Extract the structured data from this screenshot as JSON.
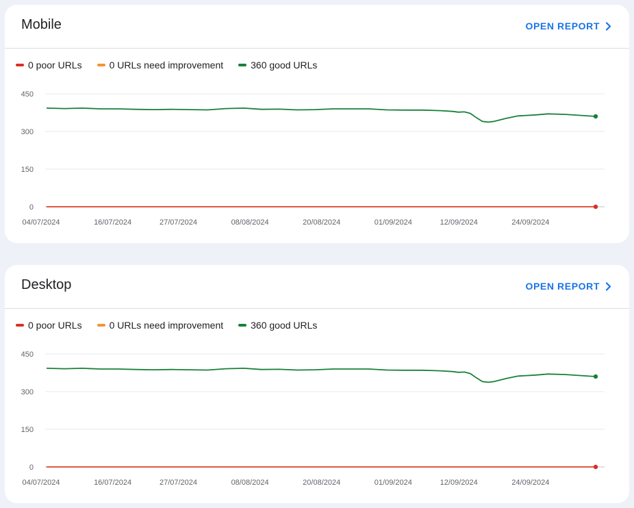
{
  "colors": {
    "poor": "#d93025",
    "needs_improvement": "#f29337",
    "good": "#188038",
    "link": "#1a73e8"
  },
  "cards": [
    {
      "title": "Mobile",
      "open_report": "OPEN REPORT",
      "icon": "chevron-right-icon",
      "legend": [
        {
          "label": "0 poor URLs",
          "color_key": "poor"
        },
        {
          "label": "0 URLs need improvement",
          "color_key": "needs_improvement"
        },
        {
          "label": "360 good URLs",
          "color_key": "good"
        }
      ]
    },
    {
      "title": "Desktop",
      "open_report": "OPEN REPORT",
      "icon": "chevron-right-icon",
      "legend": [
        {
          "label": "0 poor URLs",
          "color_key": "poor"
        },
        {
          "label": "0 URLs need improvement",
          "color_key": "needs_improvement"
        },
        {
          "label": "360 good URLs",
          "color_key": "good"
        }
      ]
    }
  ],
  "chart_data": [
    {
      "type": "line",
      "title": "Mobile",
      "x_type": "date",
      "x_ticks": [
        "04/07/2024",
        "16/07/2024",
        "27/07/2024",
        "08/08/2024",
        "20/08/2024",
        "01/09/2024",
        "12/09/2024",
        "24/09/2024"
      ],
      "y_ticks": [
        0,
        150,
        300,
        450
      ],
      "ylim": [
        0,
        450
      ],
      "grid": true,
      "series": [
        {
          "name": "good URLs",
          "color_key": "good",
          "points": [
            [
              "04/07/2024",
              393
            ],
            [
              "07/07/2024",
              391
            ],
            [
              "10/07/2024",
              393
            ],
            [
              "13/07/2024",
              390
            ],
            [
              "16/07/2024",
              390
            ],
            [
              "19/07/2024",
              388
            ],
            [
              "22/07/2024",
              387
            ],
            [
              "25/07/2024",
              388
            ],
            [
              "28/07/2024",
              387
            ],
            [
              "31/07/2024",
              386
            ],
            [
              "03/08/2024",
              391
            ],
            [
              "06/08/2024",
              393
            ],
            [
              "09/08/2024",
              388
            ],
            [
              "12/08/2024",
              389
            ],
            [
              "15/08/2024",
              386
            ],
            [
              "18/08/2024",
              387
            ],
            [
              "21/08/2024",
              390
            ],
            [
              "24/08/2024",
              390
            ],
            [
              "27/08/2024",
              390
            ],
            [
              "30/08/2024",
              386
            ],
            [
              "02/09/2024",
              385
            ],
            [
              "05/09/2024",
              385
            ],
            [
              "08/09/2024",
              383
            ],
            [
              "10/09/2024",
              380
            ],
            [
              "11/09/2024",
              377
            ],
            [
              "12/09/2024",
              378
            ],
            [
              "13/09/2024",
              372
            ],
            [
              "14/09/2024",
              355
            ],
            [
              "15/09/2024",
              340
            ],
            [
              "16/09/2024",
              337
            ],
            [
              "17/09/2024",
              340
            ],
            [
              "19/09/2024",
              352
            ],
            [
              "21/09/2024",
              362
            ],
            [
              "24/09/2024",
              366
            ],
            [
              "26/09/2024",
              370
            ],
            [
              "29/09/2024",
              368
            ],
            [
              "02/10/2024",
              363
            ],
            [
              "04/10/2024",
              360
            ]
          ]
        },
        {
          "name": "poor URLs",
          "color_key": "poor",
          "points": [
            [
              "04/07/2024",
              0
            ],
            [
              "04/10/2024",
              0
            ]
          ]
        },
        {
          "name": "URLs need improvement",
          "color_key": "needs_improvement",
          "points": [
            [
              "04/07/2024",
              0
            ],
            [
              "04/10/2024",
              0
            ]
          ]
        }
      ]
    },
    {
      "type": "line",
      "title": "Desktop",
      "x_type": "date",
      "x_ticks": [
        "04/07/2024",
        "16/07/2024",
        "27/07/2024",
        "08/08/2024",
        "20/08/2024",
        "01/09/2024",
        "12/09/2024",
        "24/09/2024"
      ],
      "y_ticks": [
        0,
        150,
        300,
        450
      ],
      "ylim": [
        0,
        450
      ],
      "grid": true,
      "series": [
        {
          "name": "good URLs",
          "color_key": "good",
          "points": [
            [
              "04/07/2024",
              393
            ],
            [
              "07/07/2024",
              391
            ],
            [
              "10/07/2024",
              393
            ],
            [
              "13/07/2024",
              390
            ],
            [
              "16/07/2024",
              390
            ],
            [
              "19/07/2024",
              388
            ],
            [
              "22/07/2024",
              387
            ],
            [
              "25/07/2024",
              388
            ],
            [
              "28/07/2024",
              387
            ],
            [
              "31/07/2024",
              386
            ],
            [
              "03/08/2024",
              391
            ],
            [
              "06/08/2024",
              393
            ],
            [
              "09/08/2024",
              388
            ],
            [
              "12/08/2024",
              389
            ],
            [
              "15/08/2024",
              386
            ],
            [
              "18/08/2024",
              387
            ],
            [
              "21/08/2024",
              390
            ],
            [
              "24/08/2024",
              390
            ],
            [
              "27/08/2024",
              390
            ],
            [
              "30/08/2024",
              386
            ],
            [
              "02/09/2024",
              385
            ],
            [
              "05/09/2024",
              385
            ],
            [
              "08/09/2024",
              383
            ],
            [
              "10/09/2024",
              380
            ],
            [
              "11/09/2024",
              377
            ],
            [
              "12/09/2024",
              378
            ],
            [
              "13/09/2024",
              372
            ],
            [
              "14/09/2024",
              355
            ],
            [
              "15/09/2024",
              340
            ],
            [
              "16/09/2024",
              337
            ],
            [
              "17/09/2024",
              340
            ],
            [
              "19/09/2024",
              352
            ],
            [
              "21/09/2024",
              362
            ],
            [
              "24/09/2024",
              366
            ],
            [
              "26/09/2024",
              370
            ],
            [
              "29/09/2024",
              368
            ],
            [
              "02/10/2024",
              363
            ],
            [
              "04/10/2024",
              360
            ]
          ]
        },
        {
          "name": "poor URLs",
          "color_key": "poor",
          "points": [
            [
              "04/07/2024",
              0
            ],
            [
              "04/10/2024",
              0
            ]
          ]
        },
        {
          "name": "URLs need improvement",
          "color_key": "needs_improvement",
          "points": [
            [
              "04/07/2024",
              0
            ],
            [
              "04/10/2024",
              0
            ]
          ]
        }
      ]
    }
  ]
}
